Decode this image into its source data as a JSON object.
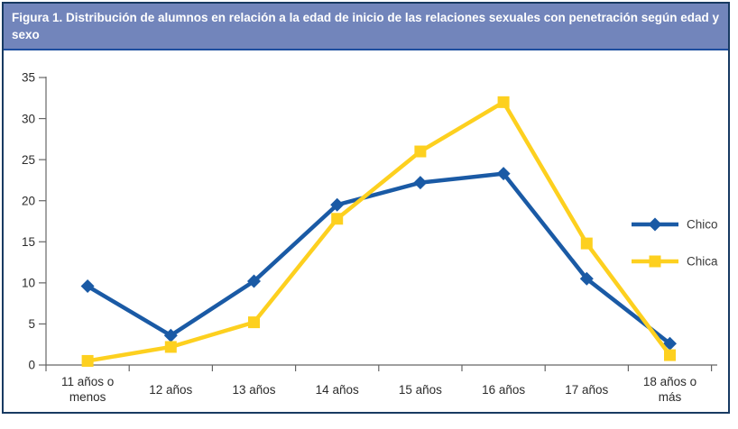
{
  "title": {
    "prefix": "Figura 1.",
    "text": "Distribución de alumnos en relación a la edad de inicio de las relaciones sexuales con penetración según edad y sexo"
  },
  "colors": {
    "banner_bg": "#7285bb",
    "banner_border": "#1e4e9f",
    "figure_border": "#183a62",
    "chico": "#1a5aa5",
    "chica": "#fdd01f",
    "axis": "#666666",
    "tick_text": "#2b2b2b",
    "legend_text": "#3a3a3a"
  },
  "chart_data": {
    "type": "line",
    "categories": [
      "11 años o\nmenos",
      "12 años",
      "13 años",
      "14 años",
      "15 años",
      "16 años",
      "17 años",
      "18 años o\nmás"
    ],
    "series": [
      {
        "name": "Chico",
        "color_key": "chico",
        "marker": "diamond",
        "values": [
          9.6,
          3.6,
          10.2,
          19.5,
          22.2,
          23.3,
          10.5,
          2.6
        ]
      },
      {
        "name": "Chica",
        "color_key": "chica",
        "marker": "square",
        "values": [
          0.5,
          2.2,
          5.2,
          17.8,
          26,
          32,
          14.8,
          1.2
        ]
      }
    ],
    "title": "",
    "xlabel": "",
    "ylabel": "",
    "ylim": [
      0,
      35
    ],
    "ytick_step": 5,
    "grid": false,
    "legend_position": "right-middle",
    "legend_labels": [
      "Chico",
      "Chica"
    ]
  }
}
